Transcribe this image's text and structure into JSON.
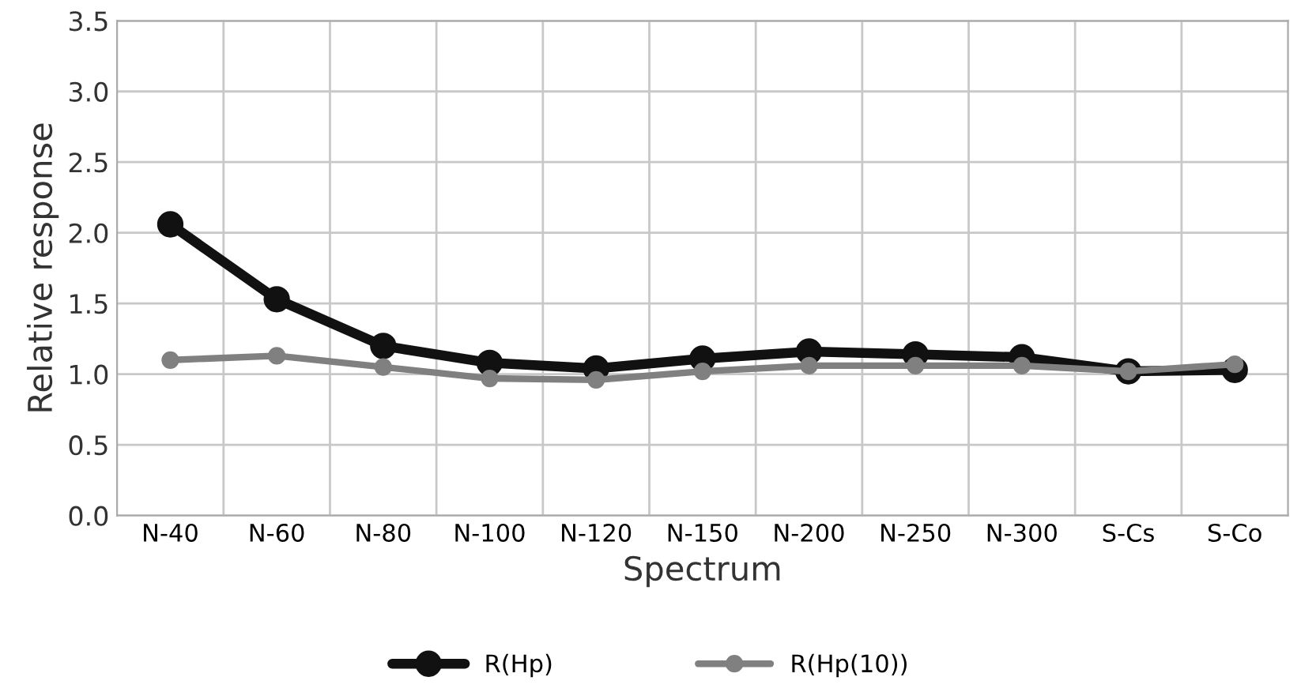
{
  "chart_data": {
    "type": "line",
    "xlabel": "Spectrum",
    "ylabel": "Relative response",
    "categories": [
      "N-40",
      "N-60",
      "N-80",
      "N-100",
      "N-120",
      "N-150",
      "N-200",
      "N-250",
      "N-300",
      "S-Cs",
      "S-Co"
    ],
    "series": [
      {
        "name": "R(Hp)",
        "color": "#111111",
        "values": [
          2.06,
          1.53,
          1.2,
          1.08,
          1.04,
          1.11,
          1.16,
          1.14,
          1.12,
          1.02,
          1.03
        ]
      },
      {
        "name": "R(Hp(10))",
        "color": "#808080",
        "values": [
          1.1,
          1.13,
          1.05,
          0.97,
          0.96,
          1.02,
          1.06,
          1.06,
          1.06,
          1.02,
          1.07
        ]
      }
    ],
    "ylim": [
      0,
      3.5
    ],
    "yticks": [
      {
        "value": 0,
        "label": "0.0"
      },
      0.5,
      {
        "value": 1,
        "label": "1.0"
      },
      1.5,
      {
        "value": 2,
        "label": "2.0"
      },
      2.5,
      {
        "value": 3,
        "label": "3.0"
      },
      3.5
    ],
    "grid": true,
    "legend": "bottom",
    "marker": "circle",
    "line_style": "solid"
  }
}
